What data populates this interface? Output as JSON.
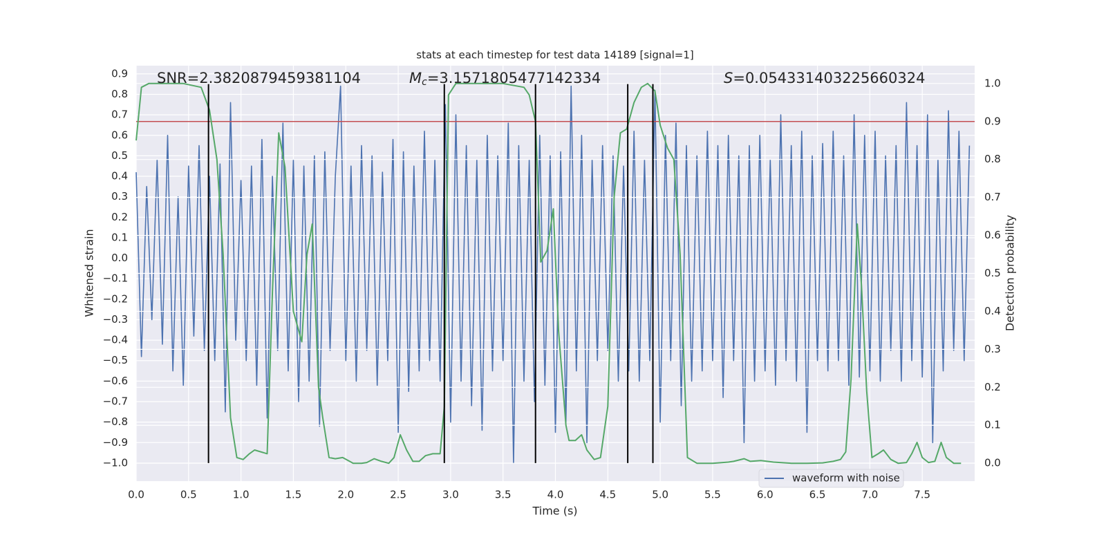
{
  "chart_data": {
    "type": "line",
    "title": "stats at each timestep for test data 14189 [signal=1]",
    "xlabel": "Time (s)",
    "ylabel": "Whitened strain",
    "y2label": "Detection probability",
    "annotations": [
      {
        "text": "SNR=2.3820879459381104"
      },
      {
        "symbol": "M",
        "sub": "c",
        "text": "=3.1571805477142334"
      },
      {
        "symbol": "S",
        "text": "=0.054331403225660324"
      }
    ],
    "xlim": [
      0,
      8.0
    ],
    "ylim": [
      -1.088,
      0.94
    ],
    "y2lim": [
      -0.047,
      1.047
    ],
    "xticks": [
      {
        "value": 0,
        "label": "0.0"
      },
      0.5,
      {
        "value": 1,
        "label": "1.0"
      },
      1.5,
      {
        "value": 2,
        "label": "2.0"
      },
      2.5,
      {
        "value": 3,
        "label": "3.0"
      },
      3.5,
      {
        "value": 4,
        "label": "4.0"
      },
      4.5,
      {
        "value": 5,
        "label": "5.0"
      },
      5.5,
      {
        "value": 6,
        "label": "6.0"
      },
      6.5,
      {
        "value": 7,
        "label": "7.0"
      },
      7.5
    ],
    "yticks": [
      {
        "value": -1.0,
        "label": "−1.0"
      },
      {
        "value": -0.9,
        "label": "−0.9"
      },
      {
        "value": -0.8,
        "label": "−0.8"
      },
      {
        "value": -0.7,
        "label": "−0.7"
      },
      {
        "value": -0.6,
        "label": "−0.6"
      },
      {
        "value": -0.5,
        "label": "−0.5"
      },
      {
        "value": -0.4,
        "label": "−0.4"
      },
      {
        "value": -0.3,
        "label": "−0.3"
      },
      {
        "value": -0.2,
        "label": "−0.2"
      },
      {
        "value": -0.1,
        "label": "−0.1"
      },
      {
        "value": 0,
        "label": "0.0"
      },
      0.1,
      0.2,
      0.3,
      0.4,
      0.5,
      0.6,
      0.7,
      0.8,
      0.9
    ],
    "y2ticks": [
      {
        "value": 0,
        "label": "0.0"
      },
      0.1,
      0.2,
      0.3,
      0.4,
      0.5,
      0.6,
      0.7,
      0.8,
      0.9,
      {
        "value": 1,
        "label": "1.0"
      }
    ],
    "grid": true,
    "legend": "lower right",
    "hline_y2": 0.9,
    "hline_color": "#c44e52",
    "vlines": {
      "x": [
        0.69,
        2.94,
        3.81,
        4.69,
        4.93
      ],
      "ymin": -1.0,
      "ymax": 0.85,
      "color": "#000000"
    },
    "series": [
      {
        "name": "waveform with noise",
        "color": "#4c72b0",
        "x": [
          0,
          0.05,
          0.1,
          0.15,
          0.2,
          0.25,
          0.3,
          0.35,
          0.4,
          0.45,
          0.5,
          0.55,
          0.6,
          0.65,
          0.7,
          0.75,
          0.8,
          0.85,
          0.9,
          0.95,
          1,
          1.05,
          1.1,
          1.15,
          1.2,
          1.25,
          1.3,
          1.35,
          1.4,
          1.45,
          1.5,
          1.55,
          1.6,
          1.65,
          1.7,
          1.75,
          1.8,
          1.85,
          1.9,
          1.95,
          2,
          2.05,
          2.1,
          2.15,
          2.2,
          2.25,
          2.3,
          2.35,
          2.4,
          2.45,
          2.5,
          2.55,
          2.6,
          2.65,
          2.7,
          2.75,
          2.8,
          2.85,
          2.9,
          2.95,
          3,
          3.05,
          3.1,
          3.15,
          3.2,
          3.25,
          3.3,
          3.35,
          3.4,
          3.45,
          3.5,
          3.55,
          3.6,
          3.65,
          3.7,
          3.75,
          3.8,
          3.85,
          3.9,
          3.95,
          4,
          4.05,
          4.1,
          4.15,
          4.2,
          4.25,
          4.3,
          4.35,
          4.4,
          4.45,
          4.5,
          4.55,
          4.6,
          4.65,
          4.7,
          4.75,
          4.8,
          4.85,
          4.9,
          4.95,
          5,
          5.05,
          5.1,
          5.15,
          5.2,
          5.25,
          5.3,
          5.35,
          5.4,
          5.45,
          5.5,
          5.55,
          5.6,
          5.65,
          5.7,
          5.75,
          5.8,
          5.85,
          5.9,
          5.95,
          6,
          6.05,
          6.1,
          6.15,
          6.2,
          6.25,
          6.3,
          6.35,
          6.4,
          6.45,
          6.5,
          6.55,
          6.6,
          6.65,
          6.7,
          6.75,
          6.8,
          6.85,
          6.9,
          6.95,
          7,
          7.05,
          7.1,
          7.15,
          7.2,
          7.25,
          7.3,
          7.35,
          7.4,
          7.45,
          7.5,
          7.55,
          7.6,
          7.65,
          7.7,
          7.75,
          7.8,
          7.85,
          7.9,
          7.95
        ],
        "values": [
          0.42,
          -0.48,
          0.35,
          -0.3,
          0.48,
          -0.42,
          0.6,
          -0.55,
          0.3,
          -0.62,
          0.45,
          -0.38,
          0.55,
          -0.45,
          0.4,
          -0.5,
          0.46,
          -0.75,
          0.76,
          -0.4,
          0.38,
          -0.5,
          0.45,
          -0.62,
          0.58,
          -0.78,
          0.4,
          -0.45,
          0.66,
          -0.55,
          0.48,
          -0.7,
          0.45,
          -0.6,
          0.5,
          -0.82,
          0.52,
          -0.45,
          0.4,
          0.84,
          -0.5,
          0.45,
          -0.6,
          0.55,
          -0.45,
          0.5,
          -0.62,
          0.42,
          -0.5,
          0.58,
          -0.85,
          0.52,
          -0.65,
          0.45,
          -0.55,
          0.62,
          -0.5,
          0.48,
          -0.6,
          0.75,
          -0.8,
          0.7,
          -0.6,
          0.55,
          -0.72,
          0.48,
          -0.84,
          0.6,
          -0.55,
          0.5,
          -0.5,
          0.66,
          -1.0,
          0.55,
          -0.6,
          0.48,
          -0.7,
          0.6,
          -0.62,
          0.5,
          -0.85,
          0.52,
          -0.8,
          0.84,
          -0.55,
          0.6,
          -0.9,
          0.48,
          -0.5,
          0.55,
          -0.45,
          0.5,
          -0.6,
          0.45,
          -0.55,
          0.62,
          -0.6,
          0.48,
          -0.5,
          0.82,
          -0.8,
          0.6,
          -0.5,
          0.66,
          -0.72,
          0.55,
          -0.6,
          0.5,
          -0.55,
          0.62,
          -0.5,
          0.55,
          -0.68,
          0.6,
          -0.5,
          0.5,
          -0.9,
          0.55,
          -0.6,
          0.6,
          -0.55,
          0.48,
          -0.62,
          0.7,
          -0.5,
          0.55,
          -0.6,
          0.62,
          -0.85,
          0.5,
          -0.5,
          0.56,
          -0.55,
          0.62,
          -0.5,
          0.5,
          -0.62,
          0.7,
          -0.58,
          0.6,
          -0.55,
          0.62,
          -0.6,
          0.5,
          -0.45,
          0.55,
          -0.6,
          0.76,
          -0.5,
          0.55,
          -0.58,
          0.7,
          -0.9,
          0.48,
          -0.55,
          0.72,
          -0.45,
          0.62,
          -0.5,
          0.55
        ]
      },
      {
        "color": "#55a868",
        "axis": "y2",
        "x": [
          0,
          0.05,
          0.12,
          0.3,
          0.45,
          0.62,
          0.7,
          0.77,
          0.83,
          0.9,
          0.96,
          1.02,
          1.08,
          1.13,
          1.25,
          1.3,
          1.36,
          1.42,
          1.5,
          1.58,
          1.63,
          1.68,
          1.74,
          1.78,
          1.84,
          1.9,
          1.97,
          2.07,
          2.15,
          2.2,
          2.27,
          2.34,
          2.41,
          2.46,
          2.52,
          2.58,
          2.64,
          2.7,
          2.76,
          2.83,
          2.9,
          2.94,
          2.98,
          3.05,
          3.25,
          3.5,
          3.7,
          3.75,
          3.81,
          3.86,
          3.92,
          3.98,
          4.03,
          4.1,
          4.13,
          4.19,
          4.25,
          4.3,
          4.37,
          4.43,
          4.5,
          4.56,
          4.62,
          4.68,
          4.75,
          4.82,
          4.88,
          4.95,
          5.0,
          5.07,
          5.13,
          5.19,
          5.26,
          5.35,
          5.5,
          5.65,
          5.7,
          5.8,
          5.86,
          5.96,
          6.08,
          6.25,
          6.4,
          6.55,
          6.65,
          6.72,
          6.77,
          6.82,
          6.88,
          6.92,
          6.97,
          7.02,
          7.08,
          7.13,
          7.2,
          7.27,
          7.35,
          7.4,
          7.45,
          7.5,
          7.56,
          7.62,
          7.68,
          7.73,
          7.8,
          7.87
        ],
        "values": [
          0.85,
          0.99,
          1.0,
          1.0,
          1.0,
          0.99,
          0.93,
          0.8,
          0.55,
          0.12,
          0.015,
          0.01,
          0.025,
          0.035,
          0.025,
          0.45,
          0.87,
          0.78,
          0.4,
          0.32,
          0.55,
          0.63,
          0.2,
          0.12,
          0.015,
          0.012,
          0.015,
          0.0,
          0.0,
          0.002,
          0.012,
          0.005,
          0.0,
          0.015,
          0.075,
          0.035,
          0.005,
          0.005,
          0.02,
          0.025,
          0.025,
          0.15,
          0.97,
          1.0,
          1.0,
          1.0,
          0.99,
          0.97,
          0.9,
          0.53,
          0.56,
          0.67,
          0.35,
          0.1,
          0.06,
          0.06,
          0.075,
          0.035,
          0.01,
          0.015,
          0.15,
          0.7,
          0.87,
          0.88,
          0.95,
          0.99,
          1.0,
          0.98,
          0.89,
          0.83,
          0.8,
          0.55,
          0.015,
          0.0,
          0.0,
          0.003,
          0.005,
          0.012,
          0.005,
          0.007,
          0.003,
          0.0,
          0.0,
          0.001,
          0.005,
          0.01,
          0.03,
          0.22,
          0.63,
          0.47,
          0.19,
          0.015,
          0.025,
          0.035,
          0.01,
          0.0,
          0.002,
          0.025,
          0.055,
          0.015,
          0.002,
          0.005,
          0.055,
          0.015,
          0.0,
          0.0
        ]
      }
    ]
  }
}
